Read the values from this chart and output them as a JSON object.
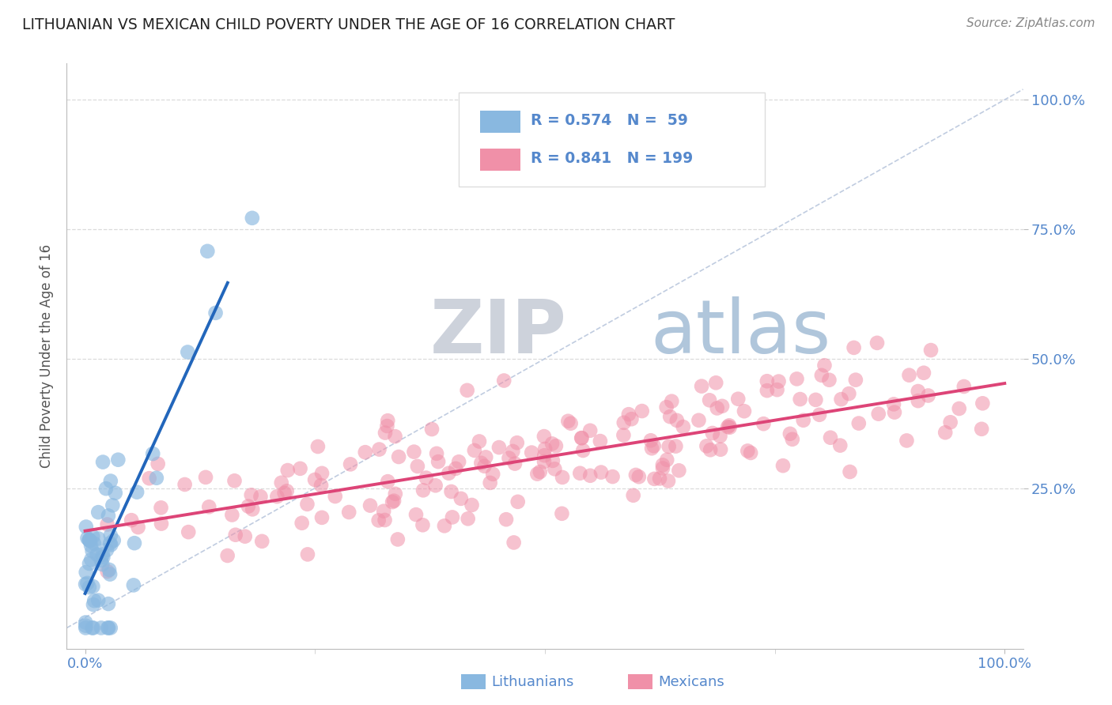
{
  "title": "LITHUANIAN VS MEXICAN CHILD POVERTY UNDER THE AGE OF 16 CORRELATION CHART",
  "source": "Source: ZipAtlas.com",
  "ylabel": "Child Poverty Under the Age of 16",
  "background_color": "#ffffff",
  "grid_color": "#cccccc",
  "axis_label_color": "#5588cc",
  "title_color": "#222222",
  "ylabel_color": "#555555",
  "lit_scatter_color": "#89b8e0",
  "mex_scatter_color": "#f090a8",
  "lit_line_color": "#2266bb",
  "mex_line_color": "#dd4477",
  "diag_line_color": "#c0cce0",
  "watermark_zip_color": "#c8cdd8",
  "watermark_atlas_color": "#a8bcd8",
  "lit_N": 59,
  "mex_N": 199,
  "seed": 7
}
